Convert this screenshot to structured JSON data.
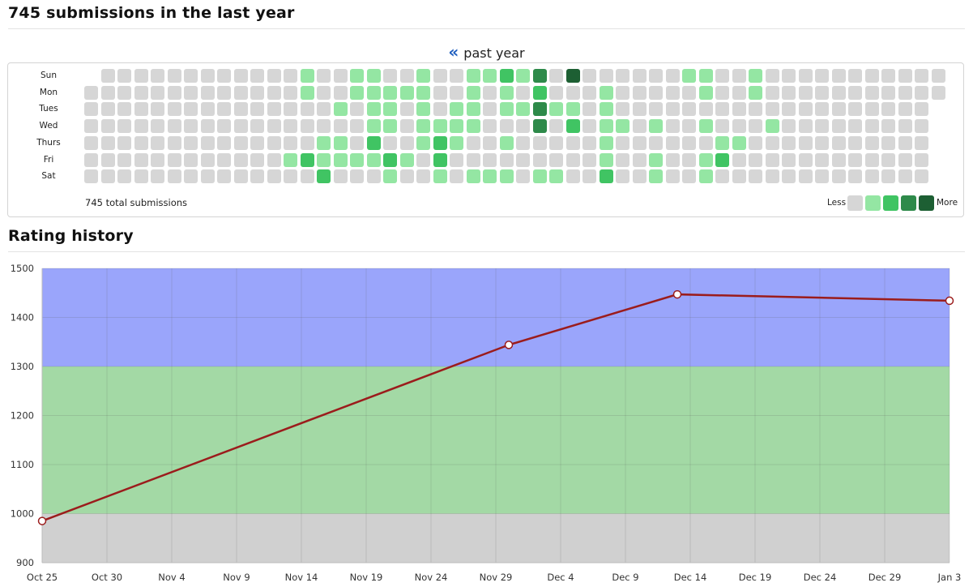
{
  "heatmap": {
    "title": "745 submissions in the last year",
    "range_label": "past year",
    "range_prev_icon": "double-chevron-left-icon",
    "day_labels": [
      "Sun",
      "Mon",
      "Tues",
      "Wed",
      "Thurs",
      "Fri",
      "Sat"
    ],
    "total_label": "745 total submissions",
    "legend_less": "Less",
    "legend_more": "More",
    "level_colors": [
      "#d6d6d6",
      "#94e6a3",
      "#40c463",
      "#2e8a4a",
      "#1d5f33"
    ],
    "rows": [
      "0000000000000100110010011213040000001100100000000000",
      "0000000000000100111110010102000100000100100000000000",
      "0000000000000001011010110113110100000000000000000000",
      "0000000000000000011011110003020110100100010000000000",
      "0000000000000011020012100100000100000011000000000000",
      "0000000000001211112102000000000100100120000000000000",
      "0000000000000020001001011101100200100100000000000000"
    ]
  },
  "rating": {
    "title": "Rating history",
    "bands": [
      {
        "from": 900,
        "to": 1000,
        "color": "#d0d0d0"
      },
      {
        "from": 1000,
        "to": 1300,
        "color": "#a3d9a5"
      },
      {
        "from": 1300,
        "to": 1500,
        "color": "#9aa5fb"
      }
    ],
    "line_color": "#9b1c1c",
    "point_fill": "#ffffff",
    "grid_color": "rgba(90,90,90,0.18)",
    "chart_data": {
      "type": "line",
      "title": "",
      "xlabel": "",
      "ylabel": "",
      "x_start": "2023-10-25",
      "x_end": "2024-01-03",
      "xticks": [
        "Oct 25",
        "Oct 30",
        "Nov 4",
        "Nov 9",
        "Nov 14",
        "Nov 19",
        "Nov 24",
        "Nov 29",
        "Dec 4",
        "Dec 9",
        "Dec 14",
        "Dec 19",
        "Dec 24",
        "Dec 29",
        "Jan 3"
      ],
      "yticks": [
        900,
        1000,
        1100,
        1200,
        1300,
        1400,
        1500
      ],
      "ylim": [
        900,
        1500
      ],
      "grid": true,
      "series": [
        {
          "points": [
            {
              "x": "2023-10-25",
              "y": 985
            },
            {
              "x": "2023-11-30",
              "y": 1344
            },
            {
              "x": "2023-12-13",
              "y": 1447
            },
            {
              "x": "2024-01-03",
              "y": 1434
            }
          ]
        }
      ]
    }
  }
}
